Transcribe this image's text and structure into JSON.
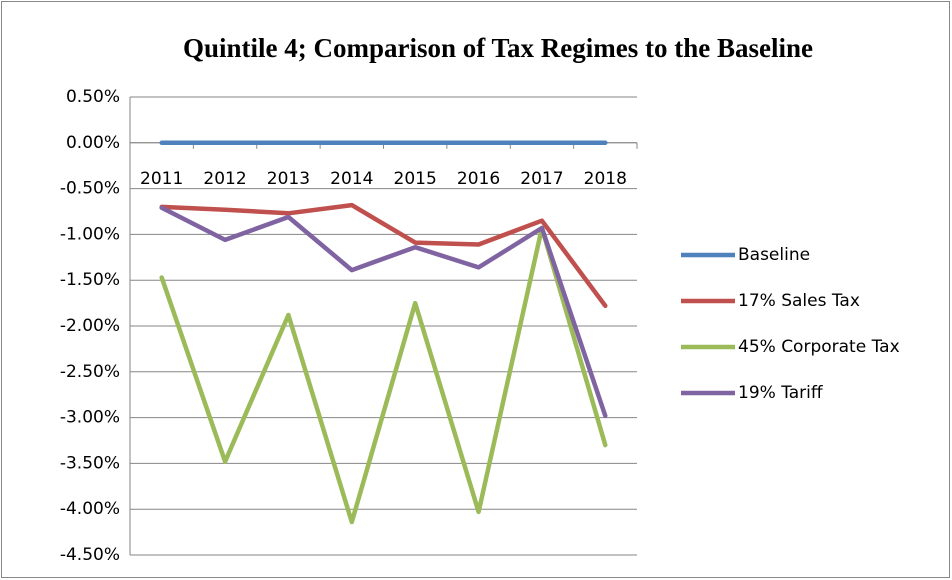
{
  "chart_data": {
    "type": "line",
    "title": "Quintile 4; Comparison of Tax Regimes to the Baseline",
    "categories": [
      "2011",
      "2012",
      "2013",
      "2014",
      "2015",
      "2016",
      "2017",
      "2018"
    ],
    "series": [
      {
        "name": "Baseline",
        "color": "#4f81bd",
        "values": [
          0,
          0,
          0,
          0,
          0,
          0,
          0,
          0
        ]
      },
      {
        "name": "17% Sales Tax",
        "color": "#c0504d",
        "values": [
          -0.7,
          -0.73,
          -0.77,
          -0.68,
          -1.09,
          -1.11,
          -0.85,
          -1.78
        ]
      },
      {
        "name": "45% Corporate Tax",
        "color": "#9bbb59",
        "values": [
          -1.47,
          -3.48,
          -1.88,
          -4.14,
          -1.75,
          -4.03,
          -0.93,
          -3.3
        ]
      },
      {
        "name": "19% Tariff",
        "color": "#8064a2",
        "values": [
          -0.71,
          -1.06,
          -0.81,
          -1.39,
          -1.14,
          -1.36,
          -0.93,
          -2.98
        ]
      }
    ],
    "ylim": [
      -4.5,
      0.5
    ],
    "yticks": [
      {
        "value": 0.5,
        "label": "0.50%"
      },
      {
        "value": 0,
        "label": "0.00%"
      },
      {
        "value": -0.5,
        "label": "-0.50%"
      },
      {
        "value": -1,
        "label": "-1.00%"
      },
      {
        "value": -1.5,
        "label": "-1.50%"
      },
      {
        "value": -2,
        "label": "-2.00%"
      },
      {
        "value": -2.5,
        "label": "-2.50%"
      },
      {
        "value": -3,
        "label": "-3.00%"
      },
      {
        "value": -3.5,
        "label": "-3.50%"
      },
      {
        "value": -4,
        "label": "-4.00%"
      },
      {
        "value": -4.5,
        "label": "-4.50%"
      }
    ],
    "grid": true,
    "legend": "right"
  }
}
